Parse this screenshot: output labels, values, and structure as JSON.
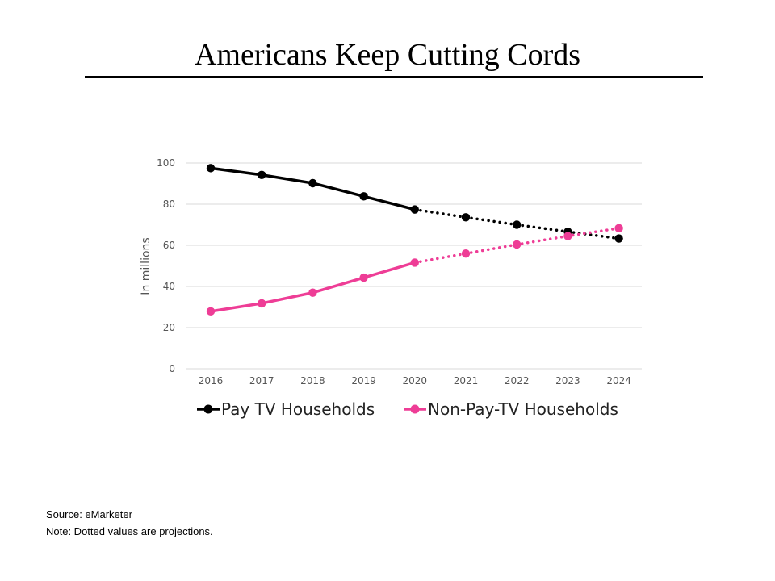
{
  "slide": {
    "title": "Americans Keep Cutting Cords",
    "source": "Source: eMarketer",
    "note": "Note: Dotted values are projections."
  },
  "chart_data": {
    "type": "line",
    "x": [
      "2016",
      "2017",
      "2018",
      "2019",
      "2020",
      "2021",
      "2022",
      "2023",
      "2024"
    ],
    "ylabel": "In millions",
    "ylim": [
      0,
      100
    ],
    "yticks": [
      0,
      20,
      40,
      60,
      80,
      100
    ],
    "grid": true,
    "legend_position": "bottom",
    "projection_start": "2020",
    "series": [
      {
        "name": "Pay TV Households",
        "color": "#000000",
        "values": [
          97.5,
          94.2,
          90.2,
          83.8,
          77.4,
          73.6,
          70.0,
          66.6,
          63.3
        ]
      },
      {
        "name": "Non-Pay-TV Households",
        "color": "#ee3d96",
        "values": [
          27.9,
          31.8,
          37.0,
          44.3,
          51.6,
          56.0,
          60.4,
          64.5,
          68.3
        ]
      }
    ]
  }
}
